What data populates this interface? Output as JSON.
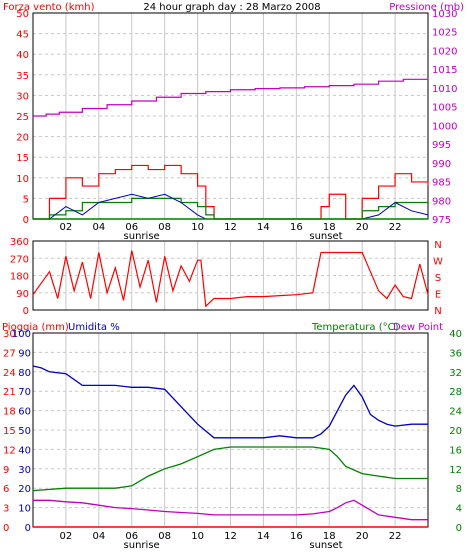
{
  "header": {
    "left": "Forza vento (kmh)",
    "center": "24 hour graph day : 28 Marzo 2008",
    "right": "Pressione (mb)"
  },
  "labels3": {
    "rain": "Pioggia (mm)",
    "hum": "Umidita %",
    "temp": "Temperatura (°C)",
    "dew": "Dew Point"
  },
  "sun": {
    "sunrise": "sunrise",
    "sunset": "sunset"
  },
  "compass": [
    "N",
    "W",
    "S",
    "E",
    "N"
  ],
  "colors": {
    "wind": "#ff0000",
    "gust_green": "#008000",
    "gust_blue": "#0000c0",
    "pressure": "#c000c0",
    "humidity": "#0000c0",
    "temperature": "#008000",
    "dewpoint": "#c000c0",
    "rain": "#ff0000",
    "grid": "#c8c8c8"
  },
  "chart_data": [
    {
      "type": "line",
      "title": "24 hour graph day : 28 Marzo 2008",
      "x_ticks": [
        "02",
        "04",
        "06",
        "08",
        "10",
        "12",
        "14",
        "16",
        "18",
        "20",
        "22"
      ],
      "x_hours": [
        2,
        4,
        6,
        8,
        10,
        12,
        14,
        16,
        18,
        20,
        22
      ],
      "left_axis": {
        "label": "Forza vento (kmh)",
        "ticks": [
          0,
          5,
          10,
          15,
          20,
          25,
          30,
          35,
          40,
          45,
          50
        ],
        "range": [
          0,
          50
        ]
      },
      "right_axis": {
        "label": "Pressione (mb)",
        "ticks": [
          975,
          980,
          985,
          990,
          995,
          1000,
          1005,
          1010,
          1015,
          1020,
          1025,
          1030
        ],
        "range": [
          975,
          1030
        ]
      },
      "series": [
        {
          "name": "Pressione (mb)",
          "axis": "right",
          "x": [
            0,
            0.8,
            1.6,
            3,
            4.5,
            6,
            7.5,
            9,
            10.5,
            12,
            13.5,
            15,
            16.5,
            18,
            19.5,
            21,
            22.5,
            24
          ],
          "values": [
            1002.5,
            1003.0,
            1003.5,
            1004.5,
            1005.5,
            1006.5,
            1007.5,
            1008.5,
            1009.0,
            1009.5,
            1009.8,
            1010.0,
            1010.3,
            1010.6,
            1011.0,
            1011.8,
            1012.3,
            1012.5
          ]
        },
        {
          "name": "Vento (max)",
          "axis": "left",
          "x": [
            0,
            1,
            2,
            3,
            4,
            5,
            6,
            7,
            8,
            9,
            10,
            10.5,
            11,
            12,
            13,
            14,
            15,
            16,
            17,
            17.5,
            18,
            19,
            20,
            21,
            22,
            23,
            24
          ],
          "values": [
            0,
            5,
            10,
            8,
            11,
            12,
            13,
            12,
            13,
            11,
            8,
            3,
            0,
            0,
            0,
            0,
            0,
            0,
            0,
            3,
            6,
            0,
            5,
            8,
            11,
            9,
            8
          ]
        },
        {
          "name": "Vento (medio)",
          "axis": "left",
          "x": [
            0,
            1,
            2,
            3,
            4,
            5,
            6,
            7,
            8,
            9,
            10,
            10.5,
            11,
            12,
            13,
            14,
            15,
            16,
            17,
            18,
            19,
            20,
            21,
            22,
            23,
            24
          ],
          "values": [
            0,
            1,
            2,
            4,
            4,
            4,
            5,
            5,
            5,
            4,
            3,
            1,
            0,
            0,
            0,
            0,
            0,
            0,
            0,
            0,
            0,
            2,
            3,
            4,
            4,
            4
          ]
        }
      ]
    },
    {
      "type": "line",
      "y_ticks": [
        0,
        90,
        180,
        270,
        360
      ],
      "range": [
        0,
        360
      ],
      "series": [
        {
          "name": "Direzione",
          "x": [
            0,
            0.5,
            1,
            1.5,
            2,
            2.5,
            3,
            3.5,
            4,
            4.5,
            5,
            5.5,
            6,
            6.5,
            7,
            7.5,
            8,
            8.5,
            9,
            9.5,
            10,
            10.2,
            10.5,
            11,
            12,
            13,
            14,
            15,
            16,
            17,
            17.5,
            18,
            19,
            20,
            20.5,
            21,
            21.5,
            22,
            22.5,
            23,
            23.5,
            24
          ],
          "values": [
            80,
            140,
            200,
            60,
            280,
            100,
            250,
            60,
            300,
            90,
            220,
            50,
            310,
            120,
            260,
            40,
            280,
            100,
            230,
            150,
            260,
            260,
            20,
            60,
            60,
            70,
            70,
            75,
            80,
            90,
            300,
            300,
            300,
            300,
            200,
            100,
            60,
            130,
            70,
            60,
            240,
            80
          ]
        }
      ]
    },
    {
      "type": "line",
      "x_ticks": [
        "02",
        "04",
        "06",
        "08",
        "10",
        "12",
        "14",
        "16",
        "18",
        "20",
        "22"
      ],
      "x_hours": [
        2,
        4,
        6,
        8,
        10,
        12,
        14,
        16,
        18,
        20,
        22
      ],
      "rain_axis": {
        "label": "Pioggia (mm)",
        "ticks": [
          0,
          3,
          6,
          9,
          12,
          15,
          18,
          21,
          24,
          27,
          30
        ],
        "range": [
          0,
          30
        ]
      },
      "humidity_axis": {
        "label": "Umidita %",
        "ticks": [
          0,
          10,
          20,
          30,
          40,
          50,
          60,
          70,
          80,
          90,
          100
        ],
        "range": [
          0,
          100
        ]
      },
      "temp_axis": {
        "label": "Temperatura (°C)",
        "ticks": [
          0,
          4,
          8,
          12,
          16,
          20,
          24,
          28,
          32,
          36,
          40
        ],
        "range": [
          0,
          40
        ]
      },
      "series": [
        {
          "name": "Umidita %",
          "axis": "humidity",
          "x": [
            0,
            0.5,
            1,
            2,
            3,
            4,
            5,
            6,
            7,
            8,
            9,
            10,
            11,
            12,
            13,
            14,
            15,
            16,
            17,
            17.5,
            18,
            18.5,
            19,
            19.5,
            20,
            20.5,
            21,
            21.5,
            22,
            23,
            24
          ],
          "values": [
            83,
            82,
            80,
            79,
            73,
            73,
            73,
            72,
            72,
            71,
            62,
            53,
            46,
            46,
            46,
            46,
            47,
            46,
            46,
            48,
            52,
            60,
            68,
            73,
            67,
            58,
            55,
            53,
            52,
            53,
            53
          ]
        },
        {
          "name": "Temperatura (°C)",
          "axis": "temp",
          "x": [
            0,
            2,
            4,
            5,
            6,
            7,
            8,
            9,
            10,
            11,
            12,
            13,
            14,
            15,
            16,
            17,
            18,
            18.5,
            19,
            20,
            21,
            22,
            24
          ],
          "values": [
            7.5,
            8,
            8,
            8,
            8.5,
            10.5,
            12,
            13,
            14.5,
            16,
            16.5,
            16.5,
            16.5,
            16.5,
            16.5,
            16.5,
            16,
            14.5,
            12.5,
            11,
            10.5,
            10,
            10
          ]
        },
        {
          "name": "Dew Point",
          "axis": "temp",
          "x": [
            0,
            1,
            2,
            3,
            4,
            5,
            6,
            7,
            8,
            9,
            10,
            11,
            12,
            13,
            14,
            15,
            16,
            17,
            18,
            18.5,
            19,
            19.5,
            20,
            21,
            22,
            23,
            24
          ],
          "values": [
            5.5,
            5.5,
            5.2,
            5,
            4.5,
            4,
            3.8,
            3.5,
            3.2,
            3,
            2.8,
            2.5,
            2.5,
            2.5,
            2.5,
            2.5,
            2.5,
            2.7,
            3.2,
            4,
            5,
            5.5,
            4.5,
            2.5,
            2,
            1.5,
            1.5
          ]
        },
        {
          "name": "Pioggia (mm)",
          "axis": "rain",
          "x": [
            0,
            24
          ],
          "values": [
            0,
            0
          ]
        }
      ]
    }
  ]
}
